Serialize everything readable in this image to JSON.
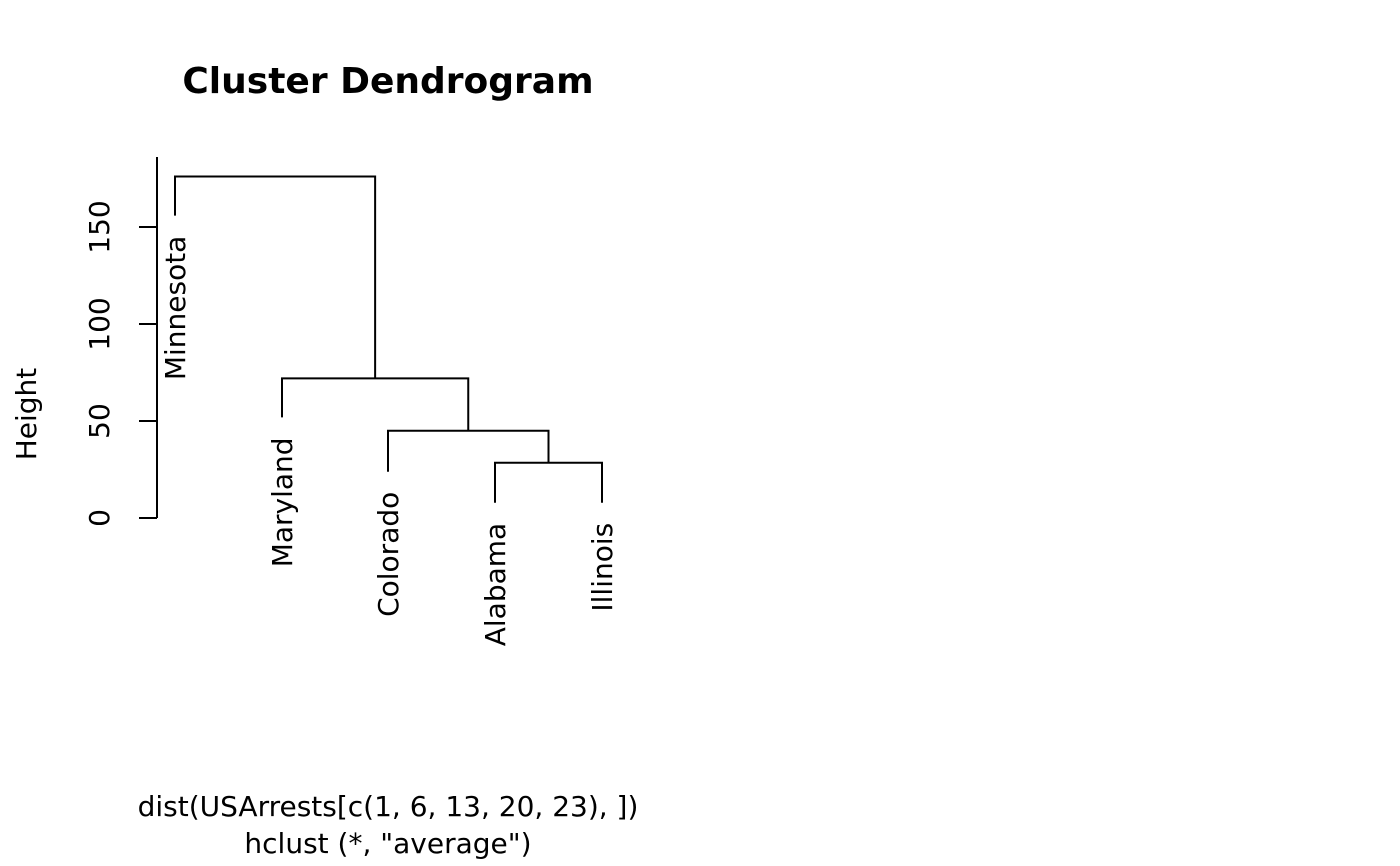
{
  "chart_data": {
    "type": "dendrogram",
    "title": "Cluster Dendrogram",
    "ylabel": "Height",
    "xlabel": "dist(USArrests[c(1, 6, 13, 20, 23), ])",
    "sub": "hclust (*, \"average\")",
    "ylim": [
      0,
      186
    ],
    "yticks": [
      "0",
      "50",
      "100",
      "150"
    ],
    "yticks_values": [
      0,
      50,
      100,
      150
    ],
    "leaves": [
      "Minnesota",
      "Maryland",
      "Colorado",
      "Alabama",
      "Illinois"
    ],
    "leaf_heights": [
      161,
      57,
      29,
      13,
      13
    ],
    "merges": [
      {
        "left": 3,
        "right": 4,
        "height": 28.5
      },
      {
        "left": 2,
        "right": "m0",
        "height": 45
      },
      {
        "left": 1,
        "right": "m1",
        "height": 72
      },
      {
        "left": 0,
        "right": "m2",
        "height": 176
      }
    ],
    "colors": {
      "line": "#000000",
      "text": "#000000",
      "background": "#ffffff"
    }
  }
}
